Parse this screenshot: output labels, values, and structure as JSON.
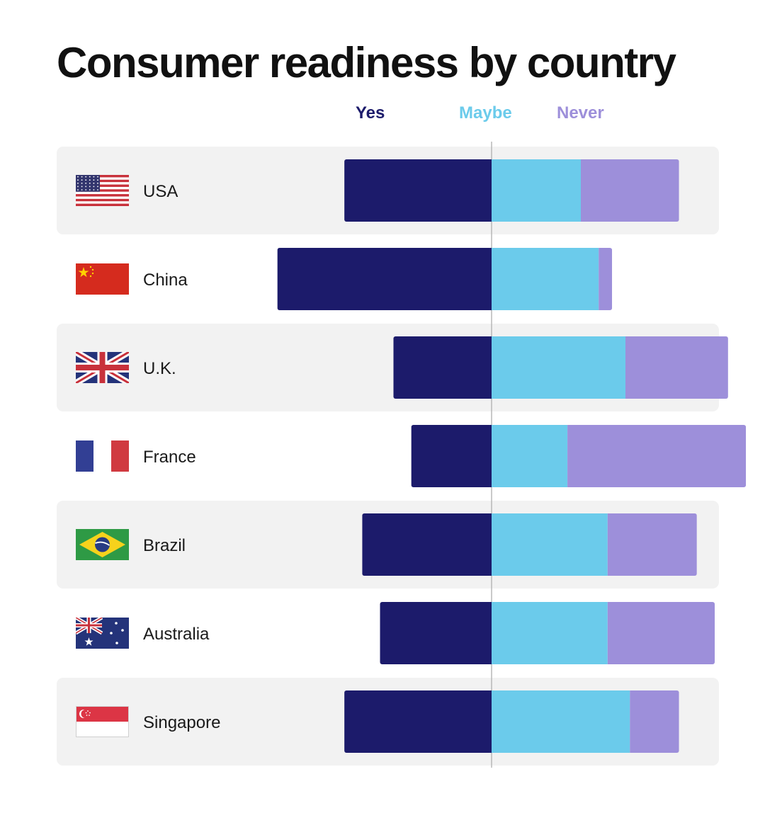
{
  "chart_data": {
    "type": "bar",
    "orientation": "horizontal-diverging-stacked",
    "title": "Consumer readiness by country",
    "series": [
      {
        "name": "Yes",
        "color": "#1c1b6b"
      },
      {
        "name": "Maybe",
        "color": "#6bcbeb"
      },
      {
        "name": "Never",
        "color": "#9d8fda"
      }
    ],
    "legend_position": "top",
    "grid": false,
    "rows": [
      {
        "label": "USA",
        "flag": "usa-flag-icon",
        "yes": 33,
        "maybe": 20,
        "never": 22
      },
      {
        "label": "China",
        "flag": "china-flag-icon",
        "yes": 48,
        "maybe": 24,
        "never": 3
      },
      {
        "label": "U.K.",
        "flag": "uk-flag-icon",
        "yes": 22,
        "maybe": 30,
        "never": 23
      },
      {
        "label": "France",
        "flag": "france-flag-icon",
        "yes": 18,
        "maybe": 17,
        "never": 40
      },
      {
        "label": "Brazil",
        "flag": "brazil-flag-icon",
        "yes": 29,
        "maybe": 26,
        "never": 20
      },
      {
        "label": "Australia",
        "flag": "australia-flag-icon",
        "yes": 25,
        "maybe": 26,
        "never": 24
      },
      {
        "label": "Singapore",
        "flag": "singapore-flag-icon",
        "yes": 33,
        "maybe": 31,
        "never": 11
      }
    ]
  },
  "colors": {
    "yes": "#1c1b6b",
    "maybe": "#6bcbeb",
    "never": "#9d8fda",
    "row_band": "#f2f2f2",
    "center_line": "#b8b8b8"
  }
}
